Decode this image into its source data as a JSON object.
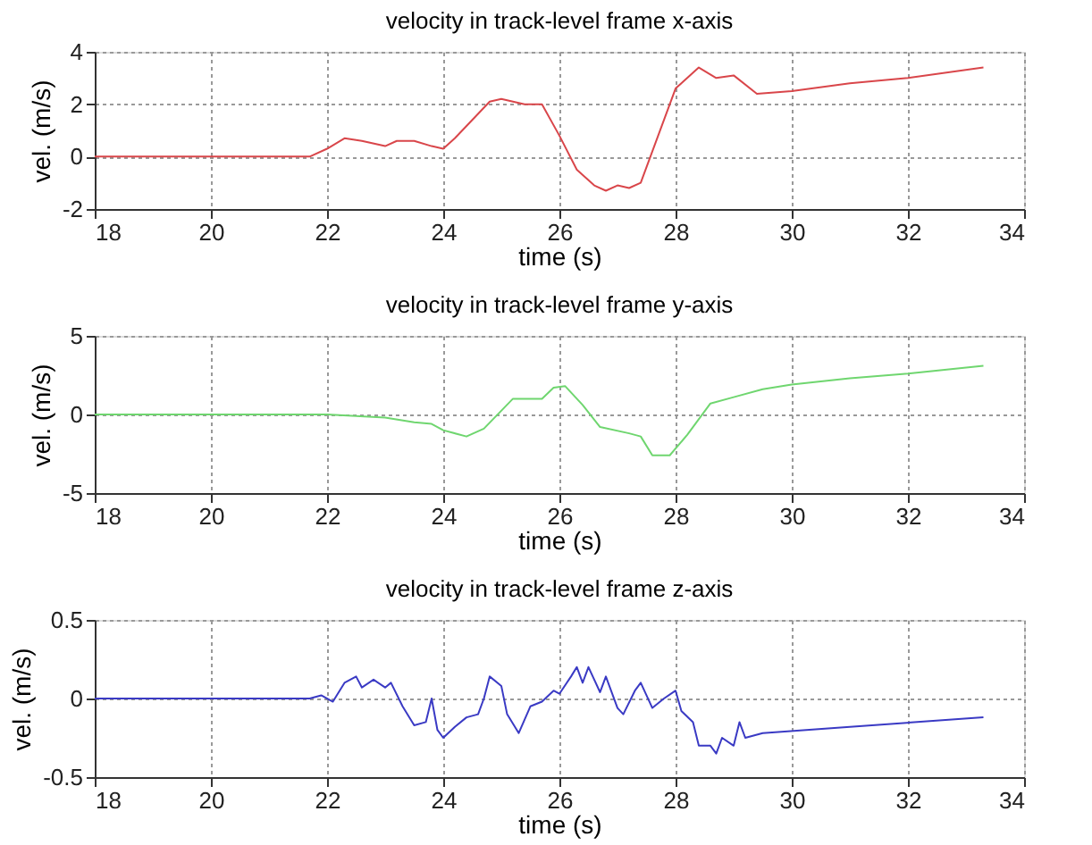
{
  "chart_data": [
    {
      "type": "line",
      "title": "velocity in track-level frame x-axis",
      "xlabel": "time (s)",
      "ylabel": "vel. (m/s)",
      "grid": true,
      "line_style": "solid",
      "xlim": [
        18,
        34
      ],
      "xticks": [
        18,
        20,
        22,
        24,
        26,
        28,
        30,
        32,
        34
      ],
      "ylim": [
        -2,
        4
      ],
      "yticks": [
        -2,
        0,
        2,
        4
      ],
      "x": [
        18,
        21.7,
        22,
        22.3,
        22.6,
        23,
        23.2,
        23.5,
        23.8,
        24,
        24.2,
        24.5,
        24.8,
        25,
        25.2,
        25.4,
        25.7,
        26,
        26.3,
        26.6,
        26.8,
        27,
        27.2,
        27.4,
        27.7,
        28,
        28.4,
        28.7,
        29,
        29.4,
        30,
        31,
        32,
        33.3
      ],
      "series": [
        {
          "color": "#d9464a",
          "values": [
            0,
            0,
            0.3,
            0.7,
            0.6,
            0.4,
            0.6,
            0.6,
            0.4,
            0.3,
            0.7,
            1.4,
            2.1,
            2.2,
            2.1,
            2.0,
            2.0,
            0.8,
            -0.5,
            -1.1,
            -1.3,
            -1.1,
            -1.2,
            -1.0,
            0.8,
            2.6,
            3.4,
            3.0,
            3.1,
            2.4,
            2.5,
            2.8,
            3.0,
            3.4
          ]
        }
      ]
    },
    {
      "type": "line",
      "title": "velocity in track-level frame y-axis",
      "xlabel": "time (s)",
      "ylabel": "vel. (m/s)",
      "grid": true,
      "line_style": "solid",
      "xlim": [
        18,
        34
      ],
      "xticks": [
        18,
        20,
        22,
        24,
        26,
        28,
        30,
        32,
        34
      ],
      "ylim": [
        -5,
        5
      ],
      "yticks": [
        -5,
        0,
        5
      ],
      "x": [
        18,
        22,
        23,
        23.5,
        23.8,
        24,
        24.4,
        24.7,
        25.2,
        25.7,
        25.9,
        26.1,
        26.4,
        26.7,
        27.2,
        27.4,
        27.6,
        27.9,
        28.2,
        28.6,
        29,
        29.5,
        30,
        31,
        32,
        33.3
      ],
      "series": [
        {
          "color": "#6fd66f",
          "values": [
            0,
            0,
            -0.2,
            -0.5,
            -0.6,
            -1.0,
            -1.4,
            -0.9,
            1.0,
            1.0,
            1.7,
            1.8,
            0.6,
            -0.8,
            -1.2,
            -1.4,
            -2.6,
            -2.6,
            -1.3,
            0.7,
            1.1,
            1.6,
            1.9,
            2.3,
            2.6,
            3.1
          ]
        }
      ]
    },
    {
      "type": "line",
      "title": "velocity in track-level frame z-axis",
      "xlabel": "time (s)",
      "ylabel": "vel. (m/s)",
      "grid": true,
      "line_style": "solid",
      "xlim": [
        18,
        34
      ],
      "xticks": [
        18,
        20,
        22,
        24,
        26,
        28,
        30,
        32,
        34
      ],
      "ylim": [
        -0.5,
        0.5
      ],
      "yticks": [
        -0.5,
        0,
        0.5
      ],
      "x": [
        18,
        21.7,
        21.9,
        22.1,
        22.3,
        22.5,
        22.6,
        22.8,
        23,
        23.1,
        23.3,
        23.5,
        23.7,
        23.8,
        23.9,
        24,
        24.2,
        24.4,
        24.6,
        24.7,
        24.8,
        25,
        25.1,
        25.3,
        25.5,
        25.7,
        25.9,
        26,
        26.2,
        26.3,
        26.4,
        26.5,
        26.7,
        26.8,
        27,
        27.1,
        27.3,
        27.4,
        27.6,
        27.8,
        28,
        28.1,
        28.3,
        28.4,
        28.6,
        28.7,
        28.8,
        29,
        29.1,
        29.2,
        29.5,
        31,
        33.3
      ],
      "series": [
        {
          "color": "#3a3ac4",
          "values": [
            0,
            0,
            0.02,
            -0.02,
            0.1,
            0.14,
            0.07,
            0.12,
            0.07,
            0.1,
            -0.05,
            -0.17,
            -0.15,
            0,
            -0.2,
            -0.25,
            -0.18,
            -0.12,
            -0.1,
            0,
            0.14,
            0.08,
            -0.1,
            -0.22,
            -0.05,
            -0.02,
            0.05,
            0.03,
            0.14,
            0.2,
            0.1,
            0.2,
            0.04,
            0.14,
            -0.06,
            -0.1,
            0.05,
            0.1,
            -0.06,
            0,
            0.05,
            -0.08,
            -0.15,
            -0.3,
            -0.3,
            -0.35,
            -0.25,
            -0.3,
            -0.15,
            -0.25,
            -0.22,
            -0.18,
            -0.12
          ]
        }
      ]
    }
  ]
}
